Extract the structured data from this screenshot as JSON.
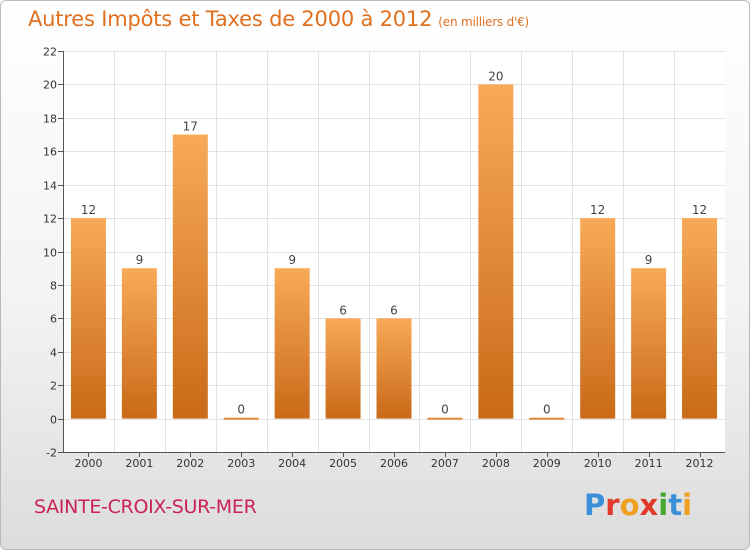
{
  "header": {
    "title": "Autres Impôts et Taxes de 2000 à 2012",
    "subtitle": "(en milliers d'€)"
  },
  "footer": {
    "location": "SAINTE-CROIX-SUR-MER",
    "brand": "Proxiti",
    "brand_colors": [
      "#3a8fd8",
      "#e23a2a",
      "#f0a020",
      "#e23a2a",
      "#46a832",
      "#3a8fd8",
      "#f0a020"
    ]
  },
  "colors": {
    "bar_light": "#f8aa58",
    "bar_dark": "#c96a18",
    "title": "#e07020",
    "location": "#cc2255",
    "grid": "#e2e2e2",
    "axis": "#555555"
  },
  "chart_data": {
    "type": "bar",
    "categories": [
      "2000",
      "2001",
      "2002",
      "2003",
      "2004",
      "2005",
      "2006",
      "2007",
      "2008",
      "2009",
      "2010",
      "2011",
      "2012"
    ],
    "values": [
      12,
      9,
      17,
      0,
      9,
      6,
      6,
      0,
      20,
      0,
      12,
      9,
      12
    ],
    "data_labels": [
      "12",
      "9",
      "17",
      "0",
      "9",
      "6",
      "6",
      "0",
      "20",
      "0",
      "12",
      "9",
      "12"
    ],
    "yticks": [
      -2,
      0,
      2,
      4,
      6,
      8,
      10,
      12,
      14,
      16,
      18,
      20,
      22
    ],
    "ylim": [
      -2,
      22
    ],
    "grid": true,
    "legend": "none"
  }
}
